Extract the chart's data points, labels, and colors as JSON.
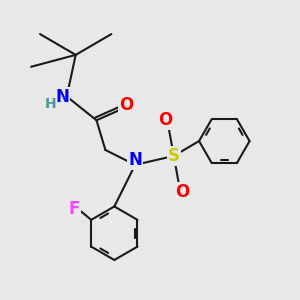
{
  "bg_color": "#e8e8e8",
  "atom_colors": {
    "N": "#0000ff",
    "O": "#ff0000",
    "S": "#cccc00",
    "F": "#ff44ff",
    "H": "#4a9a9a",
    "C": "#000000"
  },
  "bond_color": "#1a1a1a",
  "bond_width": 1.5,
  "font_size_atoms": 11,
  "font_size_small": 9
}
